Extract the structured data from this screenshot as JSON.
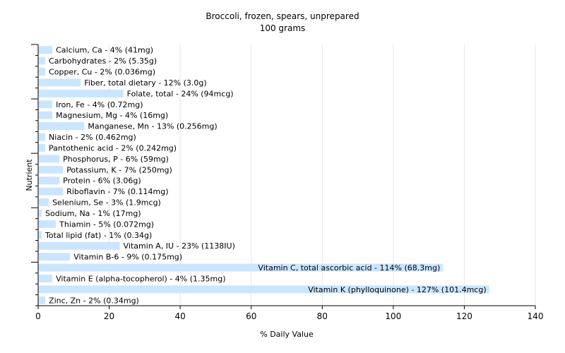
{
  "chart_data": {
    "type": "bar",
    "orientation": "horizontal",
    "title": "Broccoli, frozen, spears, unprepared",
    "subtitle": "100 grams",
    "xlabel": "% Daily Value",
    "ylabel": "Nutrient",
    "xlim": [
      0,
      140
    ],
    "xticks": [
      0,
      20,
      40,
      60,
      80,
      100,
      120,
      140
    ],
    "grid": true,
    "bar_color": "#cce5ff",
    "categories": [
      "Calcium, Ca",
      "Carbohydrates",
      "Copper, Cu",
      "Fiber, total dietary",
      "Folate, total",
      "Iron, Fe",
      "Magnesium, Mg",
      "Manganese, Mn",
      "Niacin",
      "Pantothenic acid",
      "Phosphorus, P",
      "Potassium, K",
      "Protein",
      "Riboflavin",
      "Selenium, Se",
      "Sodium, Na",
      "Thiamin",
      "Total lipid (fat)",
      "Vitamin A, IU",
      "Vitamin B-6",
      "Vitamin C, total ascorbic acid",
      "Vitamin E (alpha-tocopherol)",
      "Vitamin K (phylloquinone)",
      "Zinc, Zn"
    ],
    "values": [
      4,
      2,
      2,
      12,
      24,
      4,
      4,
      13,
      2,
      2,
      6,
      7,
      6,
      7,
      3,
      1,
      5,
      1,
      23,
      9,
      114,
      4,
      127,
      2
    ],
    "labels": [
      "Calcium, Ca - 4% (41mg)",
      "Carbohydrates - 2% (5.35g)",
      "Copper, Cu - 2% (0.036mg)",
      "Fiber, total dietary - 12% (3.0g)",
      "Folate, total - 24% (94mcg)",
      "Iron, Fe - 4% (0.72mg)",
      "Magnesium, Mg - 4% (16mg)",
      "Manganese, Mn - 13% (0.256mg)",
      "Niacin - 2% (0.462mg)",
      "Pantothenic acid - 2% (0.242mg)",
      "Phosphorus, P - 6% (59mg)",
      "Potassium, K - 7% (250mg)",
      "Protein - 6% (3.06g)",
      "Riboflavin - 7% (0.114mg)",
      "Selenium, Se - 3% (1.9mcg)",
      "Sodium, Na - 1% (17mg)",
      "Thiamin - 5% (0.072mg)",
      "Total lipid (fat) - 1% (0.34g)",
      "Vitamin A, IU - 23% (1138IU)",
      "Vitamin B-6 - 9% (0.175mg)",
      "Vitamin C, total ascorbic acid - 114% (68.3mg)",
      "Vitamin E (alpha-tocopherol) - 4% (1.35mg)",
      "Vitamin K (phylloquinone) - 127% (101.4mcg)",
      "Zinc, Zn - 2% (0.34mg)"
    ]
  }
}
